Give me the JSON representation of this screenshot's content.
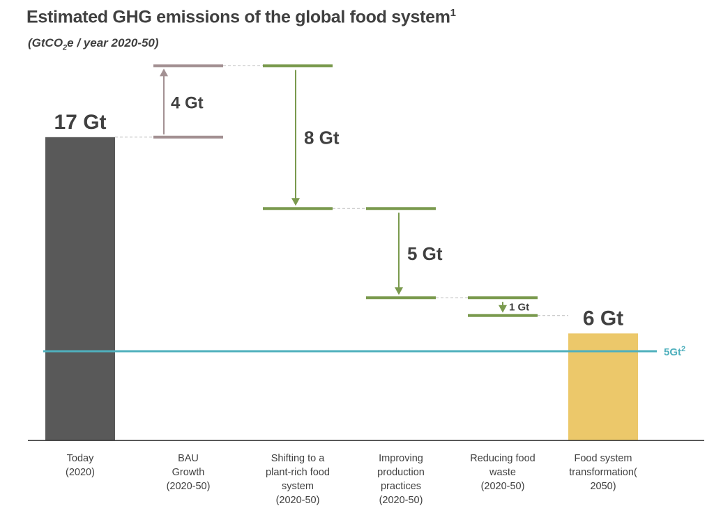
{
  "chart_data": {
    "type": "waterfall",
    "title": "Estimated GHG emissions of the global food system",
    "title_superscript": "1",
    "subtitle_prefix": "(GtCO",
    "subtitle_sub": "2",
    "subtitle_suffix": "e / year 2020-50)",
    "unit": "Gt",
    "categories": [
      {
        "label": [
          "Today",
          "(2020)"
        ],
        "kind": "total",
        "value": 17,
        "value_label": "17 Gt"
      },
      {
        "label": [
          "BAU",
          "Growth",
          "(2020-50)"
        ],
        "kind": "increase",
        "value": 4,
        "value_label": "4 Gt"
      },
      {
        "label": [
          "Shifting to a",
          "plant-rich food",
          "system",
          "(2020-50)"
        ],
        "kind": "decrease",
        "value": 8,
        "value_label": "8 Gt"
      },
      {
        "label": [
          "Improving",
          "production",
          "practices",
          "(2020-50)"
        ],
        "kind": "decrease",
        "value": 5,
        "value_label": "5 Gt"
      },
      {
        "label": [
          "Reducing food",
          "waste",
          "(2020-50)"
        ],
        "kind": "decrease",
        "value": 1,
        "value_label": "1 Gt"
      },
      {
        "label": [
          "Food system",
          "transformation(",
          "2050)"
        ],
        "kind": "total",
        "value": 6,
        "value_label": "6 Gt"
      }
    ],
    "reference_line": {
      "value": 5,
      "label": "5Gt",
      "label_superscript": "2"
    },
    "colors": {
      "today": "#595959",
      "increase": "#a39193",
      "decrease": "#7a9a4e",
      "final": "#ecc86a",
      "reference": "#4fb0bd",
      "axis": "#222222",
      "connector": "#bbbbbb"
    },
    "ylim": [
      0,
      22
    ]
  }
}
